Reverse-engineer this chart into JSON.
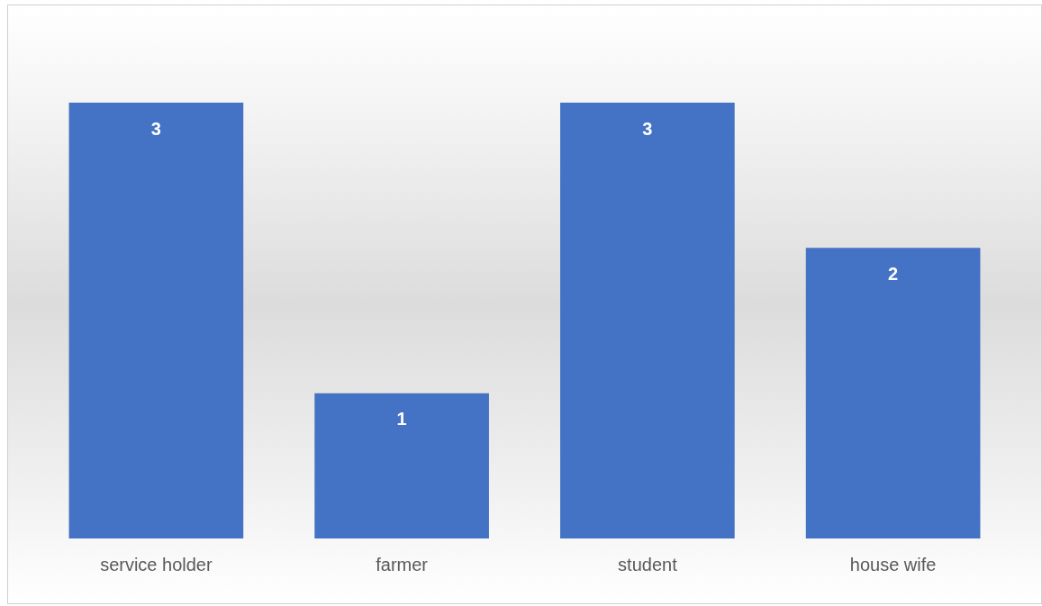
{
  "chart_data": {
    "type": "bar",
    "categories": [
      "service holder",
      "farmer",
      "student",
      "house wife"
    ],
    "values": [
      3,
      1,
      3,
      2
    ],
    "color": "#4472c4",
    "data_labels": true,
    "grid": false,
    "legend": false
  }
}
